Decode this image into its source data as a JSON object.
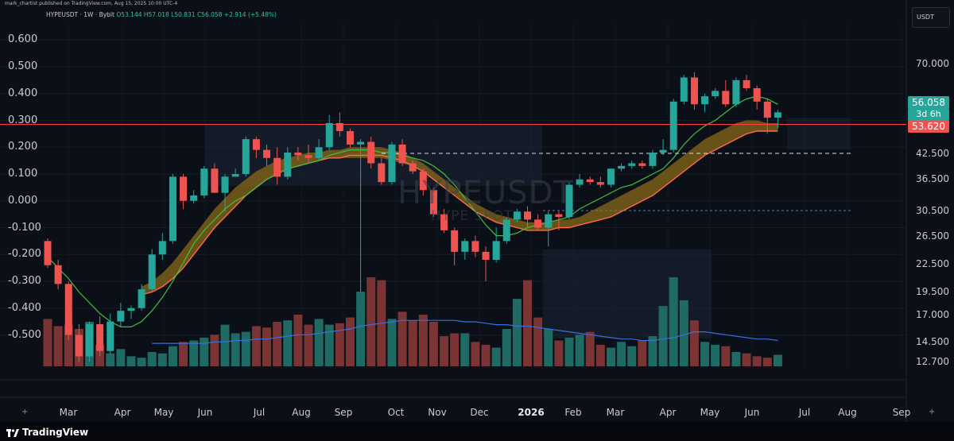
{
  "credit": "mark_chartist published on TradingView.com, Aug 15, 2025 10:00 UTC-4",
  "legend": {
    "symbol": "HYPEUSDT · 1W · Bybit",
    "ohlc": "O53.144 H57.018 L50.831 C56.058 +2.914 (+5.48%)"
  },
  "unit": "USDT",
  "watermark": {
    "symbol": "HYPEUSDT",
    "sub": "HYPE SPOT"
  },
  "left_axis": [
    "0.600",
    "0.500",
    "0.400",
    "0.300",
    "0.200",
    "0.100",
    "0.000",
    "-0.100",
    "-0.200",
    "-0.300",
    "-0.400",
    "-0.500"
  ],
  "right_axis": [
    "70.000",
    "56.058",
    "42.500",
    "36.500",
    "30.500",
    "26.500",
    "22.500",
    "19.500",
    "17.000",
    "14.500",
    "12.700"
  ],
  "price_tags": {
    "last": "56.058",
    "countdown": "3d 6h",
    "level": "53.620"
  },
  "x_axis": [
    "Mar",
    "Apr",
    "May",
    "Jun",
    "Jul",
    "Aug",
    "Sep",
    "Oct",
    "Nov",
    "Dec",
    "2026",
    "Feb",
    "Mar",
    "Apr",
    "May",
    "Jun",
    "Jul",
    "Aug",
    "Sep"
  ],
  "footer": {
    "brand": "TradingView"
  },
  "colors": {
    "up": "#26a69a",
    "down": "#ef5350",
    "ma_fast": "#3fbf3f",
    "ma_slow": "#ff6a4d",
    "band": "#8a6a18",
    "vol_ma": "#3a6fe0",
    "hline": "#ff3b3b"
  },
  "chart_data": {
    "type": "candlestick",
    "candles": [
      {
        "o": -0.15,
        "h": -0.14,
        "l": -0.25,
        "c": -0.24
      },
      {
        "o": -0.24,
        "h": -0.22,
        "l": -0.33,
        "c": -0.31
      },
      {
        "o": -0.31,
        "h": -0.3,
        "l": -0.52,
        "c": -0.5
      },
      {
        "o": -0.5,
        "h": -0.46,
        "l": -0.6,
        "c": -0.58
      },
      {
        "o": -0.58,
        "h": -0.45,
        "l": -0.6,
        "c": -0.46
      },
      {
        "o": -0.46,
        "h": -0.43,
        "l": -0.58,
        "c": -0.56
      },
      {
        "o": -0.56,
        "h": -0.42,
        "l": -0.57,
        "c": -0.45
      },
      {
        "o": -0.45,
        "h": -0.38,
        "l": -0.47,
        "c": -0.41
      },
      {
        "o": -0.41,
        "h": -0.39,
        "l": -0.44,
        "c": -0.4
      },
      {
        "o": -0.4,
        "h": -0.31,
        "l": -0.41,
        "c": -0.33
      },
      {
        "o": -0.33,
        "h": -0.18,
        "l": -0.34,
        "c": -0.2
      },
      {
        "o": -0.2,
        "h": -0.12,
        "l": -0.22,
        "c": -0.15
      },
      {
        "o": -0.15,
        "h": 0.1,
        "l": -0.16,
        "c": 0.09
      },
      {
        "o": 0.09,
        "h": 0.1,
        "l": -0.03,
        "c": 0.0
      },
      {
        "o": 0.0,
        "h": 0.04,
        "l": -0.01,
        "c": 0.02
      },
      {
        "o": 0.02,
        "h": 0.13,
        "l": 0.01,
        "c": 0.12
      },
      {
        "o": 0.12,
        "h": 0.14,
        "l": 0.03,
        "c": 0.03
      },
      {
        "o": 0.03,
        "h": 0.1,
        "l": -0.04,
        "c": 0.09
      },
      {
        "o": 0.09,
        "h": 0.12,
        "l": 0.09,
        "c": 0.1
      },
      {
        "o": 0.1,
        "h": 0.24,
        "l": 0.09,
        "c": 0.23
      },
      {
        "o": 0.23,
        "h": 0.24,
        "l": 0.16,
        "c": 0.19
      },
      {
        "o": 0.19,
        "h": 0.21,
        "l": 0.13,
        "c": 0.16
      },
      {
        "o": 0.16,
        "h": 0.2,
        "l": 0.06,
        "c": 0.09
      },
      {
        "o": 0.09,
        "h": 0.2,
        "l": 0.08,
        "c": 0.18
      },
      {
        "o": 0.18,
        "h": 0.2,
        "l": 0.15,
        "c": 0.17
      },
      {
        "o": 0.17,
        "h": 0.21,
        "l": 0.14,
        "c": 0.16
      },
      {
        "o": 0.16,
        "h": 0.23,
        "l": 0.15,
        "c": 0.2
      },
      {
        "o": 0.2,
        "h": 0.32,
        "l": 0.19,
        "c": 0.29
      },
      {
        "o": 0.29,
        "h": 0.33,
        "l": 0.24,
        "c": 0.26
      },
      {
        "o": 0.26,
        "h": 0.27,
        "l": 0.2,
        "c": 0.21
      },
      {
        "o": 0.21,
        "h": 0.23,
        "l": -0.34,
        "c": 0.22
      },
      {
        "o": 0.22,
        "h": 0.24,
        "l": 0.12,
        "c": 0.14
      },
      {
        "o": 0.14,
        "h": 0.16,
        "l": 0.06,
        "c": 0.07
      },
      {
        "o": 0.07,
        "h": 0.22,
        "l": 0.06,
        "c": 0.21
      },
      {
        "o": 0.21,
        "h": 0.23,
        "l": 0.13,
        "c": 0.14
      },
      {
        "o": 0.14,
        "h": 0.15,
        "l": 0.1,
        "c": 0.11
      },
      {
        "o": 0.11,
        "h": 0.12,
        "l": 0.02,
        "c": 0.04
      },
      {
        "o": 0.04,
        "h": 0.05,
        "l": -0.06,
        "c": -0.05
      },
      {
        "o": -0.05,
        "h": -0.03,
        "l": -0.12,
        "c": -0.11
      },
      {
        "o": -0.11,
        "h": -0.1,
        "l": -0.24,
        "c": -0.19
      },
      {
        "o": -0.19,
        "h": -0.14,
        "l": -0.22,
        "c": -0.15
      },
      {
        "o": -0.15,
        "h": -0.13,
        "l": -0.21,
        "c": -0.19
      },
      {
        "o": -0.19,
        "h": -0.17,
        "l": -0.3,
        "c": -0.22
      },
      {
        "o": -0.22,
        "h": -0.1,
        "l": -0.23,
        "c": -0.15
      },
      {
        "o": -0.15,
        "h": -0.06,
        "l": -0.16,
        "c": -0.07
      },
      {
        "o": -0.07,
        "h": -0.03,
        "l": -0.08,
        "c": -0.04
      },
      {
        "o": -0.04,
        "h": -0.02,
        "l": -0.1,
        "c": -0.07
      },
      {
        "o": -0.07,
        "h": -0.05,
        "l": -0.11,
        "c": -0.1
      },
      {
        "o": -0.1,
        "h": -0.04,
        "l": -0.17,
        "c": -0.05
      },
      {
        "o": -0.05,
        "h": -0.04,
        "l": -0.11,
        "c": -0.06
      },
      {
        "o": -0.06,
        "h": 0.07,
        "l": -0.07,
        "c": 0.06
      },
      {
        "o": 0.06,
        "h": 0.1,
        "l": 0.05,
        "c": 0.08
      },
      {
        "o": 0.08,
        "h": 0.09,
        "l": 0.06,
        "c": 0.07
      },
      {
        "o": 0.07,
        "h": 0.09,
        "l": 0.05,
        "c": 0.06
      },
      {
        "o": 0.06,
        "h": 0.12,
        "l": 0.05,
        "c": 0.12
      },
      {
        "o": 0.12,
        "h": 0.14,
        "l": 0.11,
        "c": 0.13
      },
      {
        "o": 0.13,
        "h": 0.15,
        "l": 0.12,
        "c": 0.14
      },
      {
        "o": 0.14,
        "h": 0.15,
        "l": 0.12,
        "c": 0.13
      },
      {
        "o": 0.13,
        "h": 0.19,
        "l": 0.12,
        "c": 0.18
      },
      {
        "o": 0.18,
        "h": 0.23,
        "l": 0.17,
        "c": 0.19
      },
      {
        "o": 0.19,
        "h": 0.38,
        "l": 0.18,
        "c": 0.37
      },
      {
        "o": 0.37,
        "h": 0.47,
        "l": 0.36,
        "c": 0.46
      },
      {
        "o": 0.46,
        "h": 0.48,
        "l": 0.34,
        "c": 0.36
      },
      {
        "o": 0.36,
        "h": 0.4,
        "l": 0.33,
        "c": 0.39
      },
      {
        "o": 0.39,
        "h": 0.42,
        "l": 0.38,
        "c": 0.41
      },
      {
        "o": 0.41,
        "h": 0.45,
        "l": 0.35,
        "c": 0.36
      },
      {
        "o": 0.36,
        "h": 0.46,
        "l": 0.35,
        "c": 0.45
      },
      {
        "o": 0.45,
        "h": 0.47,
        "l": 0.41,
        "c": 0.42
      },
      {
        "o": 0.42,
        "h": 0.43,
        "l": 0.34,
        "c": 0.37
      },
      {
        "o": 0.37,
        "h": 0.38,
        "l": 0.25,
        "c": 0.31
      },
      {
        "o": 0.31,
        "h": 0.34,
        "l": 0.27,
        "c": 0.33
      }
    ],
    "volume": [
      0.33,
      0.28,
      0.29,
      0.26,
      0.31,
      0.15,
      0.09,
      0.12,
      0.07,
      0.06,
      0.1,
      0.09,
      0.14,
      0.17,
      0.18,
      0.2,
      0.22,
      0.29,
      0.23,
      0.24,
      0.28,
      0.27,
      0.31,
      0.32,
      0.36,
      0.29,
      0.33,
      0.29,
      0.3,
      0.34,
      0.52,
      0.62,
      0.6,
      0.33,
      0.38,
      0.32,
      0.36,
      0.31,
      0.21,
      0.23,
      0.23,
      0.17,
      0.15,
      0.13,
      0.26,
      0.47,
      0.6,
      0.34,
      0.26,
      0.18,
      0.2,
      0.22,
      0.24,
      0.15,
      0.13,
      0.17,
      0.14,
      0.18,
      0.21,
      0.42,
      0.62,
      0.46,
      0.32,
      0.17,
      0.15,
      0.14,
      0.1,
      0.09,
      0.07,
      0.06,
      0.08
    ],
    "ma_fast": [
      -0.21,
      -0.25,
      -0.29,
      -0.34,
      -0.38,
      -0.42,
      -0.45,
      -0.47,
      -0.47,
      -0.45,
      -0.41,
      -0.36,
      -0.3,
      -0.23,
      -0.16,
      -0.11,
      -0.07,
      -0.03,
      0.0,
      0.02,
      0.05,
      0.08,
      0.1,
      0.12,
      0.13,
      0.14,
      0.15,
      0.17,
      0.18,
      0.19,
      0.19,
      0.19,
      0.18,
      0.18,
      0.17,
      0.16,
      0.15,
      0.13,
      0.1,
      0.06,
      0.01,
      -0.04,
      -0.09,
      -0.13,
      -0.13,
      -0.12,
      -0.1,
      -0.09,
      -0.08,
      -0.07,
      -0.06,
      -0.03,
      -0.01,
      0.01,
      0.03,
      0.05,
      0.06,
      0.08,
      0.1,
      0.12,
      0.16,
      0.21,
      0.25,
      0.28,
      0.3,
      0.33,
      0.36,
      0.38,
      0.39,
      0.38,
      0.36
    ],
    "ma_slow": [
      null,
      null,
      null,
      null,
      null,
      null,
      null,
      null,
      null,
      -0.32,
      -0.31,
      -0.29,
      -0.26,
      -0.22,
      -0.17,
      -0.12,
      -0.07,
      -0.03,
      0.01,
      0.05,
      0.08,
      0.11,
      0.13,
      0.15,
      0.16,
      0.17,
      0.18,
      0.19,
      0.19,
      0.2,
      0.2,
      0.2,
      0.2,
      0.19,
      0.18,
      0.16,
      0.14,
      0.11,
      0.08,
      0.05,
      0.02,
      -0.01,
      -0.03,
      -0.05,
      -0.06,
      -0.07,
      -0.08,
      -0.08,
      -0.08,
      -0.07,
      -0.07,
      -0.06,
      -0.05,
      -0.04,
      -0.03,
      -0.01,
      0.01,
      0.03,
      0.05,
      0.08,
      0.11,
      0.14,
      0.17,
      0.2,
      0.22,
      0.24,
      0.26,
      0.28,
      0.29,
      0.29,
      0.29
    ],
    "ma_band_top": [
      null,
      null,
      null,
      null,
      null,
      null,
      null,
      null,
      null,
      -0.32,
      -0.3,
      -0.27,
      -0.23,
      -0.18,
      -0.13,
      -0.08,
      -0.03,
      0.01,
      0.05,
      0.08,
      0.11,
      0.13,
      0.15,
      0.16,
      0.17,
      0.18,
      0.18,
      0.19,
      0.19,
      0.19,
      0.19,
      0.19,
      0.19,
      0.18,
      0.17,
      0.16,
      0.14,
      0.11,
      0.08,
      0.05,
      0.02,
      -0.01,
      -0.03,
      -0.05,
      -0.06,
      -0.07,
      -0.08,
      -0.08,
      -0.08,
      -0.07,
      -0.07,
      -0.06,
      -0.04,
      -0.02,
      0.0,
      0.02,
      0.04,
      0.06,
      0.08,
      0.11,
      0.14,
      0.17,
      0.2,
      0.23,
      0.25,
      0.27,
      0.29,
      0.3,
      0.3,
      0.29,
      0.29
    ],
    "vol_ma": [
      null,
      null,
      null,
      null,
      null,
      null,
      null,
      null,
      null,
      null,
      0.16,
      0.16,
      0.16,
      0.16,
      0.16,
      0.16,
      0.17,
      0.17,
      0.18,
      0.18,
      0.19,
      0.19,
      0.2,
      0.21,
      0.22,
      0.22,
      0.23,
      0.24,
      0.25,
      0.26,
      0.28,
      0.29,
      0.3,
      0.31,
      0.32,
      0.32,
      0.32,
      0.32,
      0.32,
      0.32,
      0.31,
      0.31,
      0.3,
      0.29,
      0.29,
      0.28,
      0.28,
      0.27,
      0.26,
      0.25,
      0.24,
      0.23,
      0.22,
      0.21,
      0.2,
      0.19,
      0.19,
      0.18,
      0.18,
      0.19,
      0.2,
      0.22,
      0.24,
      0.24,
      0.23,
      0.22,
      0.21,
      0.2,
      0.19,
      0.19,
      0.18
    ],
    "hline_level": 0.285,
    "left_range": [
      -0.62,
      0.66
    ],
    "grid": true
  }
}
